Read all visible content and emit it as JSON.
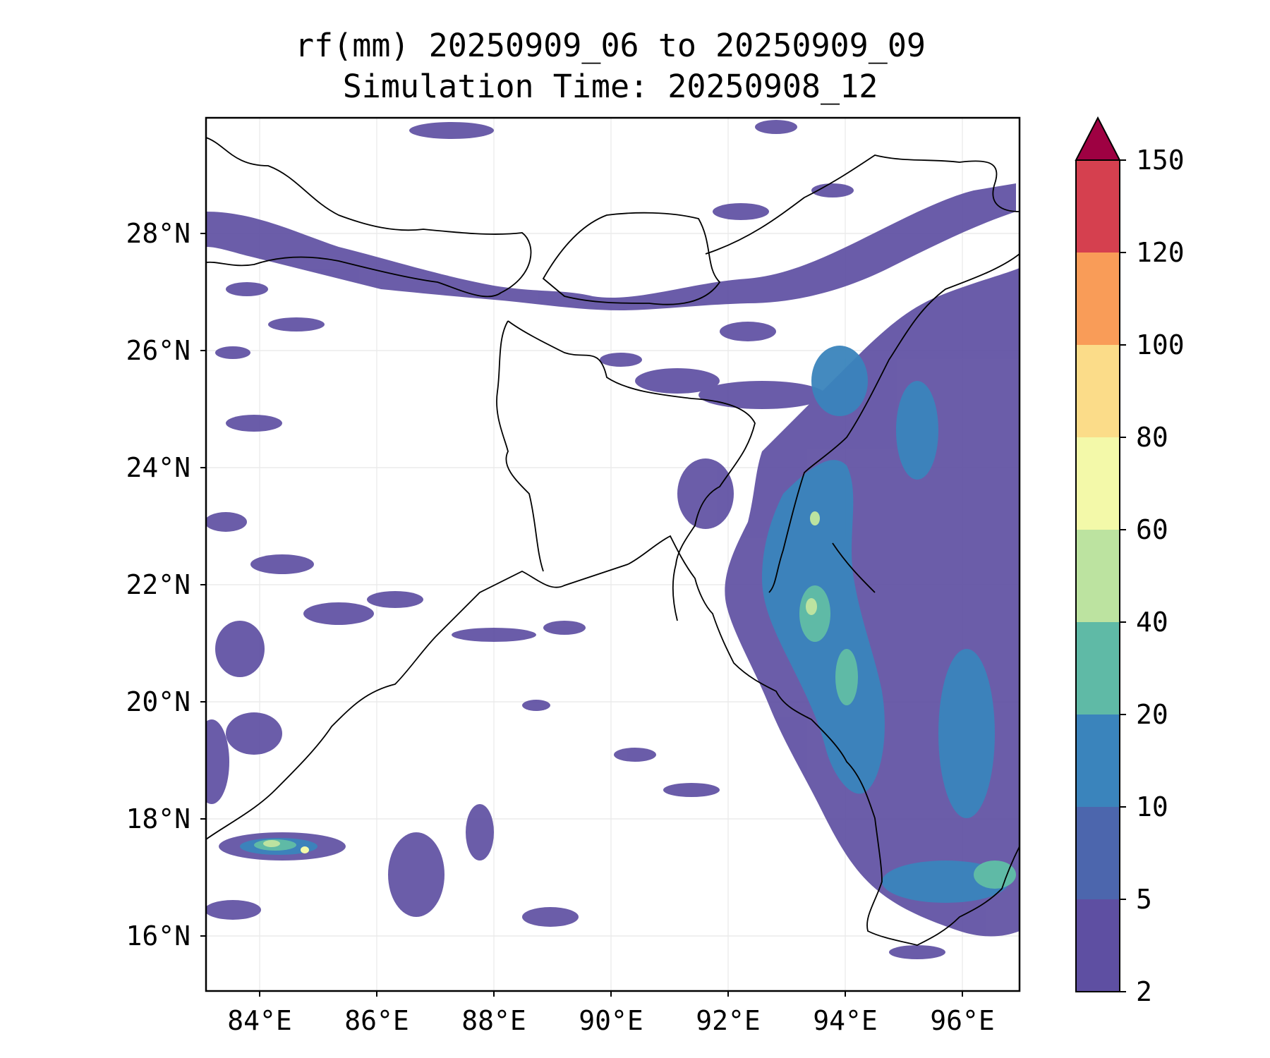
{
  "title": {
    "line1": "rf(mm) 20250909_06 to 20250909_09",
    "line2": "Simulation Time: 20250908_12"
  },
  "map": {
    "variable": "rf(mm)",
    "lon_range": [
      83.1,
      97.0
    ],
    "lat_range": [
      15.0,
      29.9
    ],
    "lon_ticks": [
      "84°E",
      "86°E",
      "88°E",
      "90°E",
      "92°E",
      "94°E",
      "96°E"
    ],
    "lat_ticks": [
      "16°N",
      "18°N",
      "20°N",
      "22°N",
      "24°N",
      "26°N",
      "28°N"
    ],
    "grid": true
  },
  "colorbar": {
    "levels": [
      "2",
      "5",
      "10",
      "20",
      "40",
      "60",
      "80",
      "100",
      "120",
      "150"
    ],
    "colors": [
      "#5e4fa2",
      "#4c66ad",
      "#3a84bc",
      "#5fbaa6",
      "#bce3a0",
      "#f3f9a9",
      "#fbdc89",
      "#f99c58",
      "#d5404f",
      "#9e0142"
    ],
    "extend": "max"
  }
}
